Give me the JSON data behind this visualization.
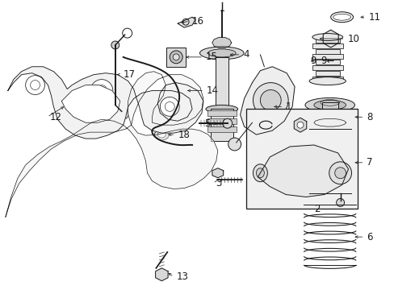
{
  "bg_color": "#ffffff",
  "fig_width": 4.89,
  "fig_height": 3.6,
  "dpi": 100,
  "lc": "#1a1a1a",
  "lw": 0.7
}
